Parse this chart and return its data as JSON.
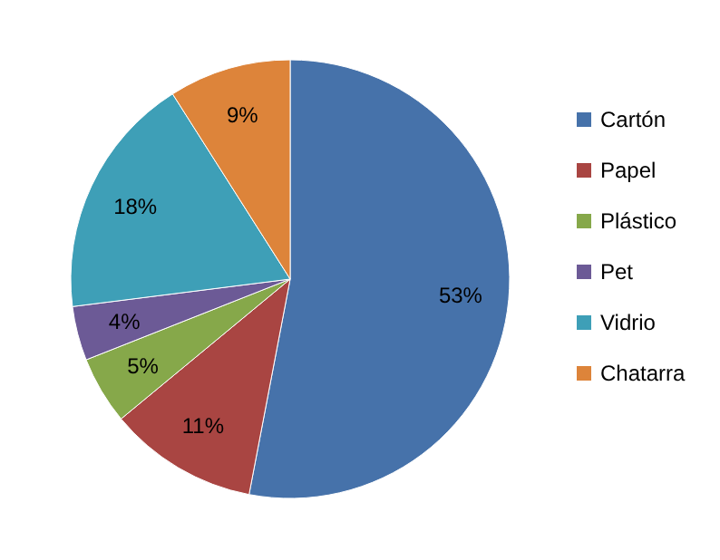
{
  "chart_data": {
    "type": "pie",
    "categories": [
      "Cartón",
      "Papel",
      "Plástico",
      "Pet",
      "Vidrio",
      "Chatarra"
    ],
    "values": [
      53,
      11,
      5,
      4,
      18,
      9
    ],
    "colors": [
      "#4672aa",
      "#a94542",
      "#86a84a",
      "#6c5a96",
      "#3e9fb7",
      "#dd843a"
    ],
    "value_labels": [
      "53%",
      "11%",
      "5%",
      "4%",
      "18%",
      "9%"
    ],
    "legend": "right"
  }
}
